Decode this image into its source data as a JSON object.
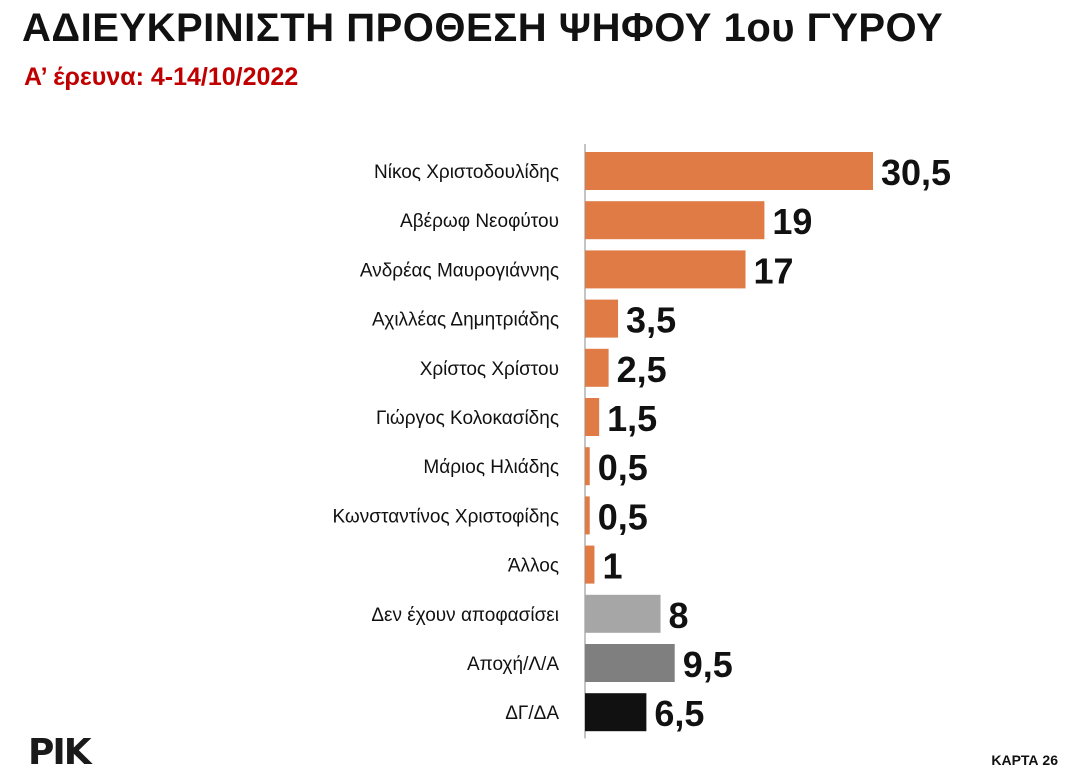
{
  "header": {
    "title": "ΑΔΙΕΥΚΡΙΝΙΣΤΗ ΠΡΟΘΕΣΗ ΨΗΦΟΥ 1ου ΓΥΡΟΥ",
    "subtitle": "Α’ έρευνα: 4-14/10/2022"
  },
  "chart_data": {
    "type": "bar",
    "orientation": "horizontal",
    "categories": [
      "Νίκος Χριστοδουλίδης",
      "Αβέρωφ Νεοφύτου",
      "Ανδρέας Μαυρογιάννης",
      "Αχιλλέας Δημητριάδης",
      "Χρίστος Χρίστου",
      "Γιώργος Κολοκασίδης",
      "Μάριος Ηλιάδης",
      "Κωνσταντίνος Χριστοφίδης",
      "Άλλος",
      "Δεν έχουν αποφασίσει",
      "Αποχή/Λ/Α",
      "ΔΓ/ΔΑ"
    ],
    "values": [
      30.5,
      19,
      17,
      3.5,
      2.5,
      1.5,
      0.5,
      0.5,
      1,
      8,
      9.5,
      6.5
    ],
    "value_labels": [
      "30,5",
      "19",
      "17",
      "3,5",
      "2,5",
      "1,5",
      "0,5",
      "0,5",
      "1",
      "8",
      "9,5",
      "6,5"
    ],
    "colors": [
      "#e07b46",
      "#e07b46",
      "#e07b46",
      "#e07b46",
      "#e07b46",
      "#e07b46",
      "#e07b46",
      "#e07b46",
      "#e07b46",
      "#a6a6a6",
      "#7f7f7f",
      "#111111"
    ],
    "xlim": [
      0,
      30.5
    ],
    "grid": false
  },
  "footer": {
    "logo_text": "ΡΙΚ",
    "page_label": "ΚΑΡΤΑ 26"
  }
}
